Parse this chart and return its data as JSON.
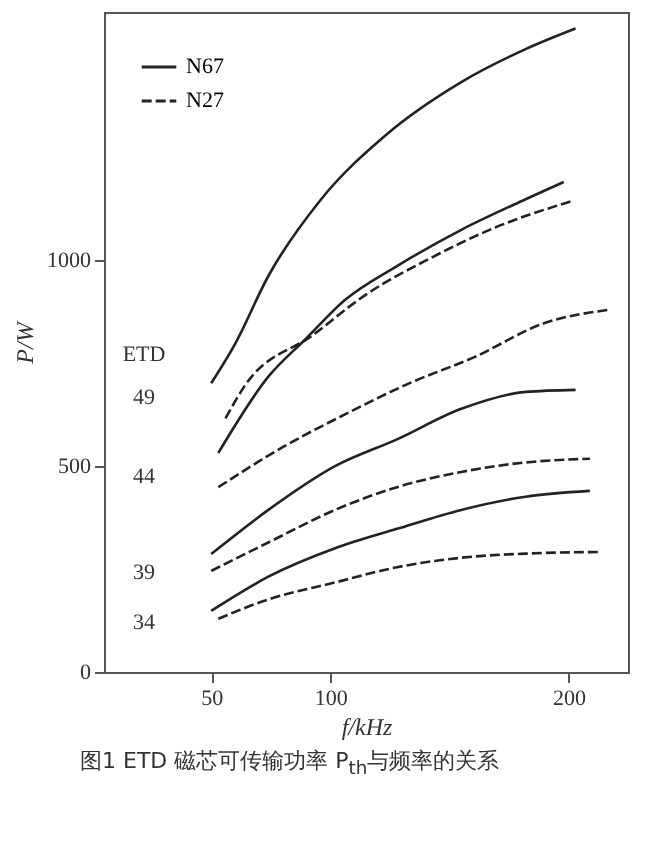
{
  "chart_data": {
    "type": "line",
    "xlabel": "f/kHz",
    "ylabel": "P/W",
    "xlim": [
      5,
      225
    ],
    "ylim": [
      0,
      1600
    ],
    "xticks": [
      50,
      100,
      200
    ],
    "yticks": [
      0,
      500,
      1000
    ],
    "grid": false,
    "legend": "top left",
    "marker": "none",
    "series": [
      {
        "name": "N67",
        "color": "#222222",
        "line_style": "solid",
        "x": [
          50,
          60,
          74,
          96,
          123,
          155,
          182,
          203
        ],
        "values": [
          700,
          795,
          960,
          1145,
          1300,
          1430,
          1510,
          1560
        ]
      },
      {
        "color": "#222222",
        "line_style": "solid",
        "x": [
          53,
          74,
          90,
          106,
          128,
          155,
          182,
          198
        ],
        "values": [
          531,
          716,
          809,
          901,
          984,
          1072,
          1146,
          1188
        ]
      },
      {
        "name": "N27",
        "color": "#222222",
        "line_style": "dashed",
        "x": [
          56,
          64,
          93,
          115,
          142,
          169,
          201
        ],
        "values": [
          615,
          693,
          818,
          915,
          1003,
          1077,
          1141
        ]
      },
      {
        "color": "#222222",
        "line_style": "dashed",
        "x": [
          53,
          80,
          106,
          134,
          160,
          190,
          217
        ],
        "values": [
          448,
          545,
          624,
          702,
          762,
          846,
          878
        ]
      },
      {
        "color": "#222222",
        "line_style": "solid",
        "x": [
          50,
          74,
          102,
          128,
          155,
          182,
          203
        ],
        "values": [
          286,
          393,
          499,
          564,
          638,
          679,
          684
        ]
      },
      {
        "color": "#222222",
        "line_style": "dashed",
        "x": [
          50,
          74,
          102,
          128,
          155,
          182,
          209
        ],
        "values": [
          245,
          314,
          393,
          448,
          485,
          508,
          517
        ]
      },
      {
        "color": "#222222",
        "line_style": "solid",
        "x": [
          50,
          74,
          102,
          128,
          155,
          182,
          209
        ],
        "values": [
          148,
          231,
          300,
          347,
          393,
          425,
          439
        ]
      },
      {
        "color": "#222222",
        "line_style": "dashed",
        "x": [
          53,
          74,
          102,
          128,
          155,
          182,
          214
        ],
        "values": [
          129,
          176,
          217,
          254,
          277,
          287,
          291
        ]
      }
    ],
    "annotations": [
      "ETD",
      "49",
      "44",
      "39",
      "34",
      "图1 ETD 磁芯可传输功率 P$_{th}$与频率的关系"
    ]
  }
}
